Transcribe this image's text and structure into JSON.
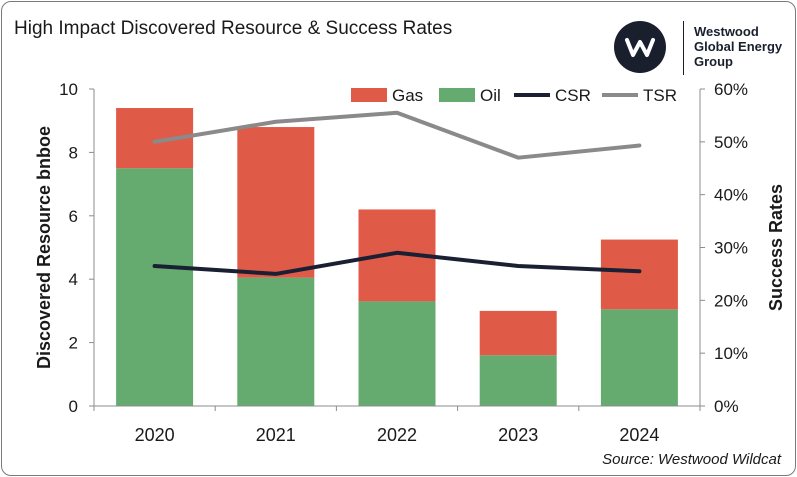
{
  "title": "High Impact Discovered Resource & Success Rates",
  "logo": {
    "lines": [
      "Westwood",
      "Global Energy",
      "Group"
    ],
    "icon": "w-logo-icon"
  },
  "source": "Source: Westwood Wildcat",
  "colors": {
    "gas": "#e05a48",
    "oil": "#65ab6f",
    "csr": "#1a1f33",
    "tsr": "#8a8a8a"
  },
  "chart_data": {
    "type": "bar",
    "categories": [
      "2020",
      "2021",
      "2022",
      "2023",
      "2024"
    ],
    "series": [
      {
        "name": "Oil",
        "kind": "stacked-bar",
        "axis": "left",
        "values": [
          7.5,
          4.05,
          3.3,
          1.6,
          3.05
        ]
      },
      {
        "name": "Gas",
        "kind": "stacked-bar",
        "axis": "left",
        "values": [
          1.9,
          4.75,
          2.9,
          1.4,
          2.2
        ]
      },
      {
        "name": "CSR",
        "kind": "line",
        "axis": "right",
        "values": [
          0.265,
          0.25,
          0.29,
          0.265,
          0.255
        ]
      },
      {
        "name": "TSR",
        "kind": "line",
        "axis": "right",
        "values": [
          0.5,
          0.538,
          0.555,
          0.47,
          0.493
        ]
      }
    ],
    "ylabel": "Discovered Resource bnboe",
    "y2label": "Success Rates",
    "ylim": [
      0,
      10
    ],
    "y2lim": [
      0,
      0.6
    ],
    "yticks": [
      "0",
      "2",
      "4",
      "6",
      "8",
      "10"
    ],
    "y2ticks": [
      "0%",
      "10%",
      "20%",
      "30%",
      "40%",
      "50%",
      "60%"
    ],
    "legend": [
      "Gas",
      "Oil",
      "CSR",
      "TSR"
    ],
    "legend_position": "top",
    "grid": false
  }
}
